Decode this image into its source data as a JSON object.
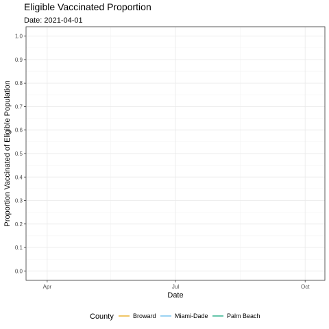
{
  "chart_data": {
    "type": "line",
    "title": "Eligible Vaccinated Proportion",
    "subtitle": "Date: 2021-04-01",
    "xlabel": "Date",
    "ylabel": "Proportion Vaccinated of Eligible Population",
    "xlim": [
      "2021-03-17",
      "2021-10-15"
    ],
    "ylim": [
      -0.04,
      1.04
    ],
    "x_ticks": [
      {
        "date": "2021-04-01",
        "label": "Apr"
      },
      {
        "date": "2021-07-01",
        "label": "Jul"
      },
      {
        "date": "2021-10-01",
        "label": "Oct"
      }
    ],
    "x_minor_ticks": [
      "2021-05-16",
      "2021-08-16"
    ],
    "y_ticks": [
      0.0,
      0.1,
      0.2,
      0.3,
      0.4,
      0.5,
      0.6,
      0.7,
      0.8,
      0.9,
      1.0
    ],
    "y_tick_labels": [
      "0.0",
      "0.1",
      "0.2",
      "0.3",
      "0.4",
      "0.5",
      "0.6",
      "0.7",
      "0.8",
      "0.9",
      "1.0"
    ],
    "grid": true,
    "legend": {
      "title": "County",
      "position": "bottom"
    },
    "series": [
      {
        "name": "Broward",
        "color": "#E69F00",
        "points": []
      },
      {
        "name": "Miami-Dade",
        "color": "#56B4E9",
        "points": []
      },
      {
        "name": "Palm Beach",
        "color": "#009E73",
        "points": []
      }
    ]
  }
}
